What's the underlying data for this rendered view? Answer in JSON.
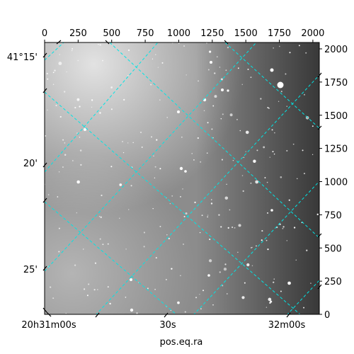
{
  "chart_data": {
    "type": "image",
    "title": "",
    "xlabel": "pos.eq.ra",
    "ylabel": "",
    "pixel_axes": {
      "x": {
        "range": [
          0,
          2048
        ],
        "ticks": [
          0,
          250,
          500,
          750,
          1000,
          1250,
          1500,
          1750,
          2000
        ]
      },
      "y": {
        "range": [
          0,
          2048
        ],
        "ticks": [
          0,
          250,
          500,
          750,
          1000,
          1250,
          1500,
          1750,
          2000
        ]
      }
    },
    "world_axes": {
      "ra_tick_labels": [
        "20h31m00s",
        "30s",
        "32m00s"
      ],
      "dec_tick_labels": [
        "41°15'",
        "20'",
        "25'"
      ]
    },
    "grid": true,
    "grid_color": "#00e5e5",
    "colormap": "gray"
  }
}
